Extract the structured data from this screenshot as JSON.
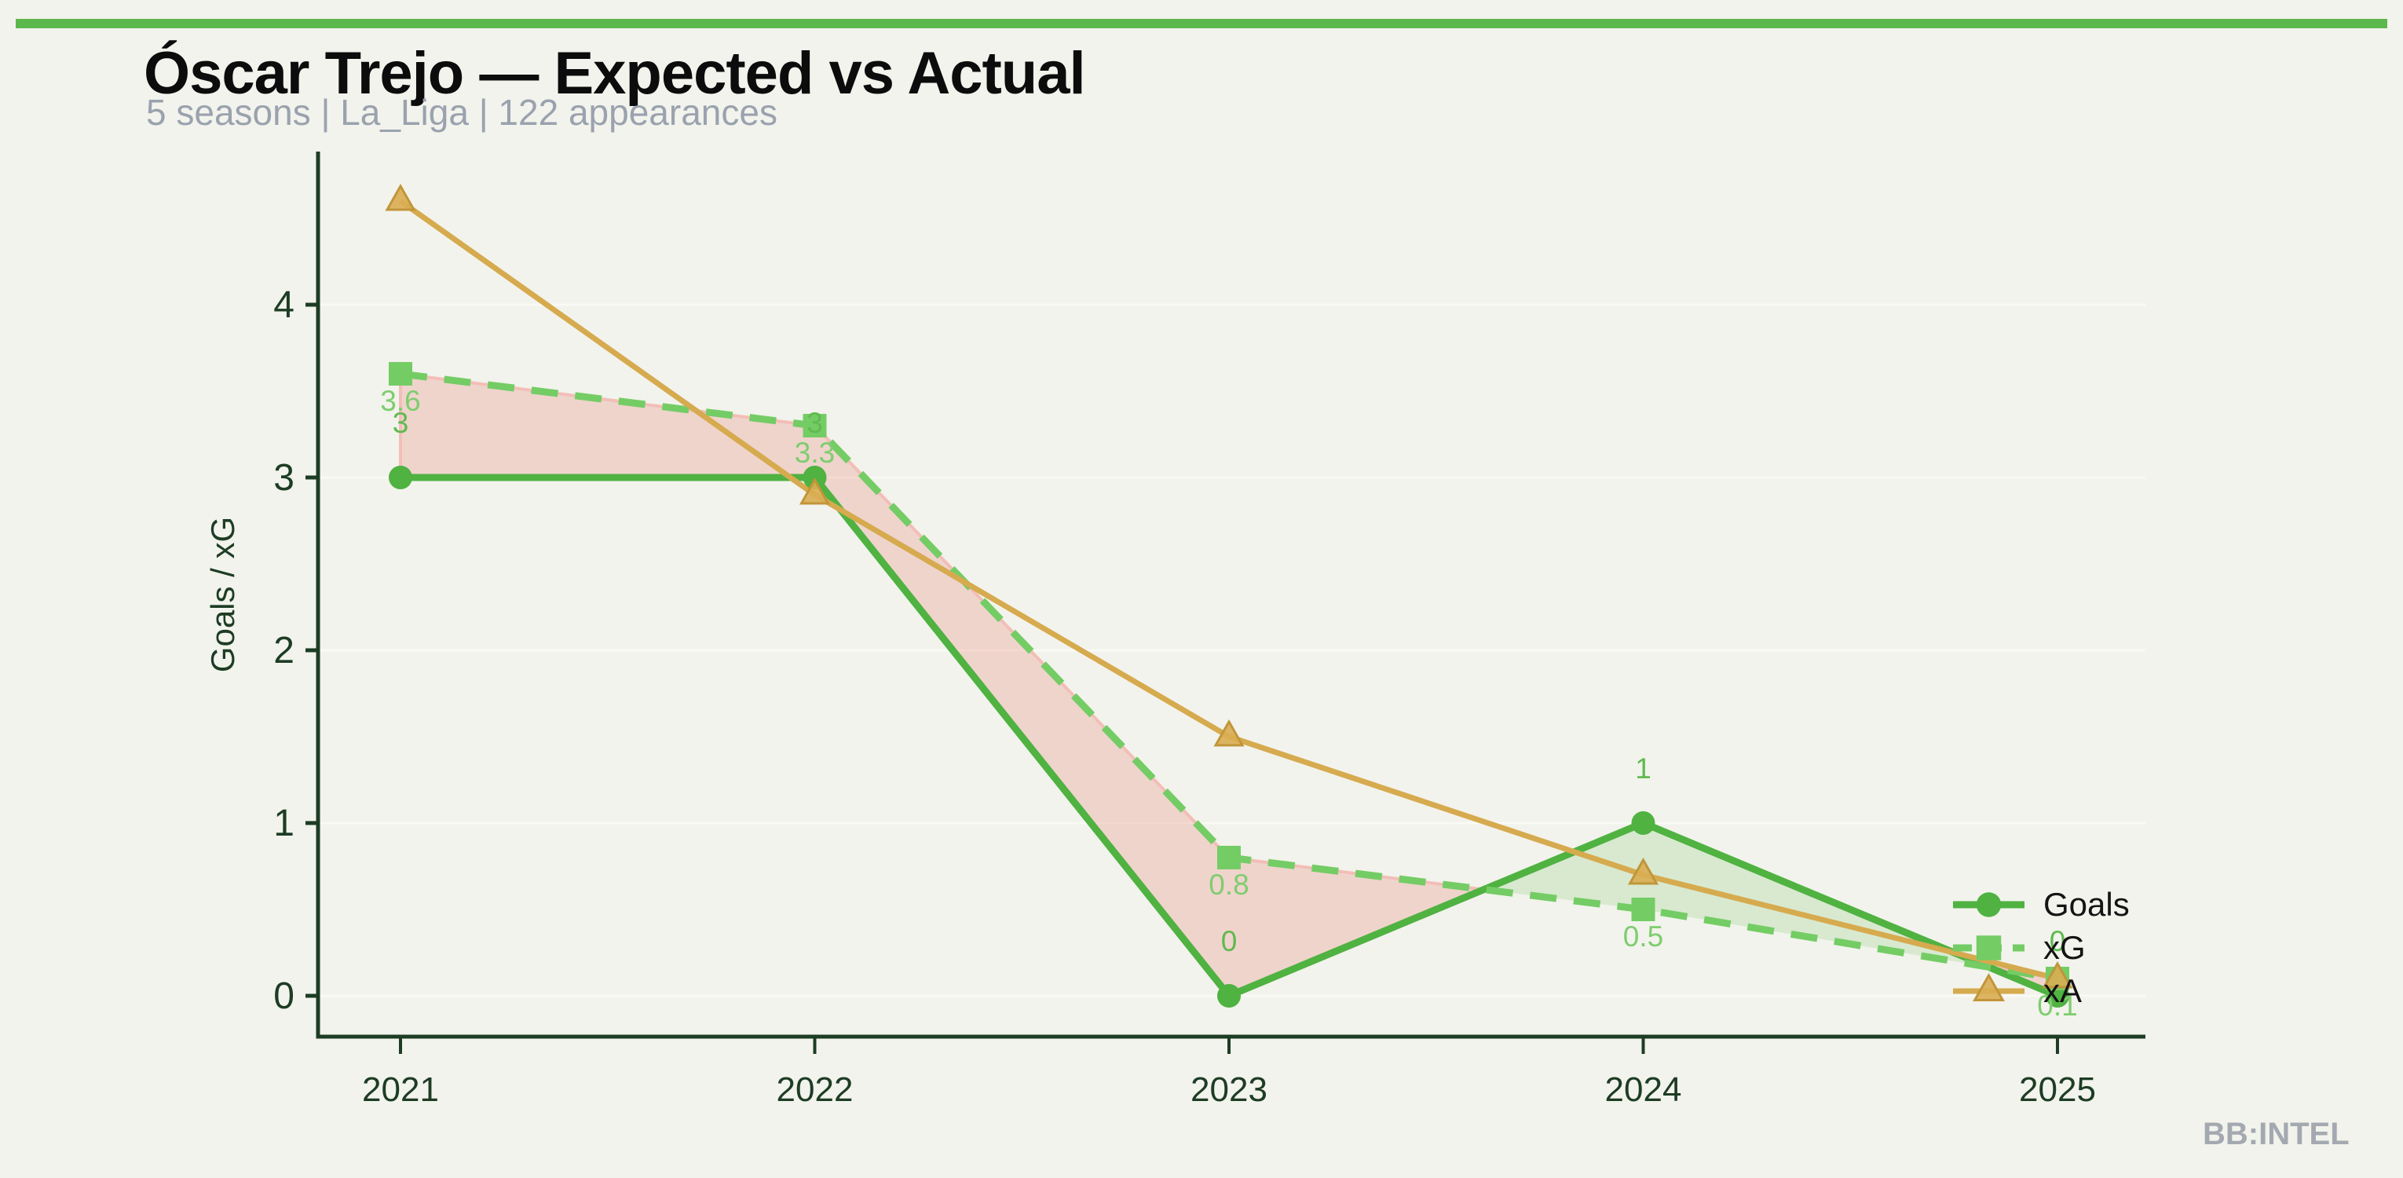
{
  "page": {
    "title": "Óscar Trejo — Expected vs Actual",
    "subtitle": "5 seasons | La_Liga | 122 appearances",
    "watermark": "BB:INTEL"
  },
  "colors": {
    "topbar": "#5cb84c",
    "background": "#f2f3ec",
    "axis": "#1d3c24",
    "grid": "#f9faf3",
    "goals_line": "#4fb241",
    "xg_line": "#74cc65",
    "xa_line": "#d6aa4e",
    "xa_marker_fill": "#d9ad52",
    "xa_marker_stroke": "#c1953a",
    "goals_label": "#5fba50",
    "xg_label": "#7ecd6f",
    "fill_xg_over_goals": "rgba(233,148,139,0.33)",
    "fill_xg_over_goals_edge": "rgba(242,186,180,0.9)",
    "fill_goals_over_xg": "rgba(148,206,128,0.27)",
    "legend_text": "#141414",
    "tick_text": "#1d3c24"
  },
  "chart_data": {
    "type": "line",
    "title": "Óscar Trejo — Expected vs Actual",
    "subtitle": "5 seasons | La_Liga | 122 appearances",
    "x": [
      2021,
      2022,
      2023,
      2024,
      2025
    ],
    "xlabel": "",
    "ylabel": "Goals / xG",
    "yticks": [
      0,
      1,
      2,
      3,
      4
    ],
    "ylim": [
      -0.24,
      4.89
    ],
    "grid": "faint-horizontal",
    "legend_position": "right-lower-inside",
    "series": [
      {
        "name": "Goals",
        "values": [
          3,
          3,
          0,
          1,
          0
        ],
        "point_labels": [
          "3",
          "3",
          "0",
          "1",
          "0"
        ],
        "style": "solid-circle"
      },
      {
        "name": "xG",
        "values": [
          3.6,
          3.3,
          0.8,
          0.5,
          0.1
        ],
        "point_labels": [
          "3.6",
          "3.3",
          "0.8",
          "0.5",
          "0.1"
        ],
        "style": "dashed-square"
      },
      {
        "name": "xA",
        "values": [
          4.6,
          2.9,
          1.5,
          0.7,
          0.1
        ],
        "point_labels": [],
        "style": "solid-triangle"
      }
    ],
    "fills": [
      {
        "condition": "xG > Goals",
        "color_key": "fill_xg_over_goals"
      },
      {
        "condition": "Goals > xG",
        "color_key": "fill_goals_over_xg"
      }
    ]
  }
}
